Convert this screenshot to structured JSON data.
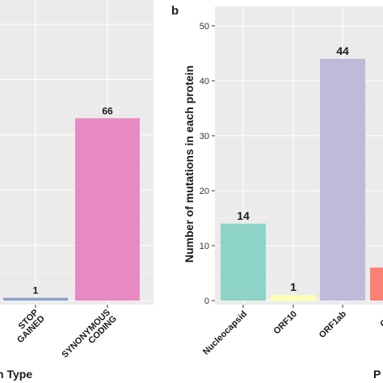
{
  "chart_data": [
    {
      "type": "bar",
      "panel_label": "",
      "categories": [
        "STOP\nGAINED",
        "SYNONYMOUS\nCODING"
      ],
      "values": [
        1,
        66
      ],
      "data_labels": [
        "1",
        "66"
      ],
      "colors": [
        "#8da0cb",
        "#e78ac3"
      ],
      "xlabel": "n Type",
      "ylabel": "",
      "ylim": [
        0,
        100
      ],
      "grid": true
    },
    {
      "type": "bar",
      "panel_label": "b",
      "categories": [
        "Nucleocapsid",
        "ORF10",
        "ORF1ab",
        "ORF"
      ],
      "values": [
        14,
        1,
        44,
        6
      ],
      "data_labels": [
        "14",
        "1",
        "44",
        ""
      ],
      "colors": [
        "#8dd3c7",
        "#ffffb3",
        "#bebada",
        "#fb8072"
      ],
      "xlabel": "P",
      "ylabel": "Number of mutations in each protein",
      "yticks": [
        0,
        10,
        20,
        30,
        40,
        50
      ],
      "ylim": [
        -1.2,
        51.5
      ],
      "grid": true
    }
  ]
}
